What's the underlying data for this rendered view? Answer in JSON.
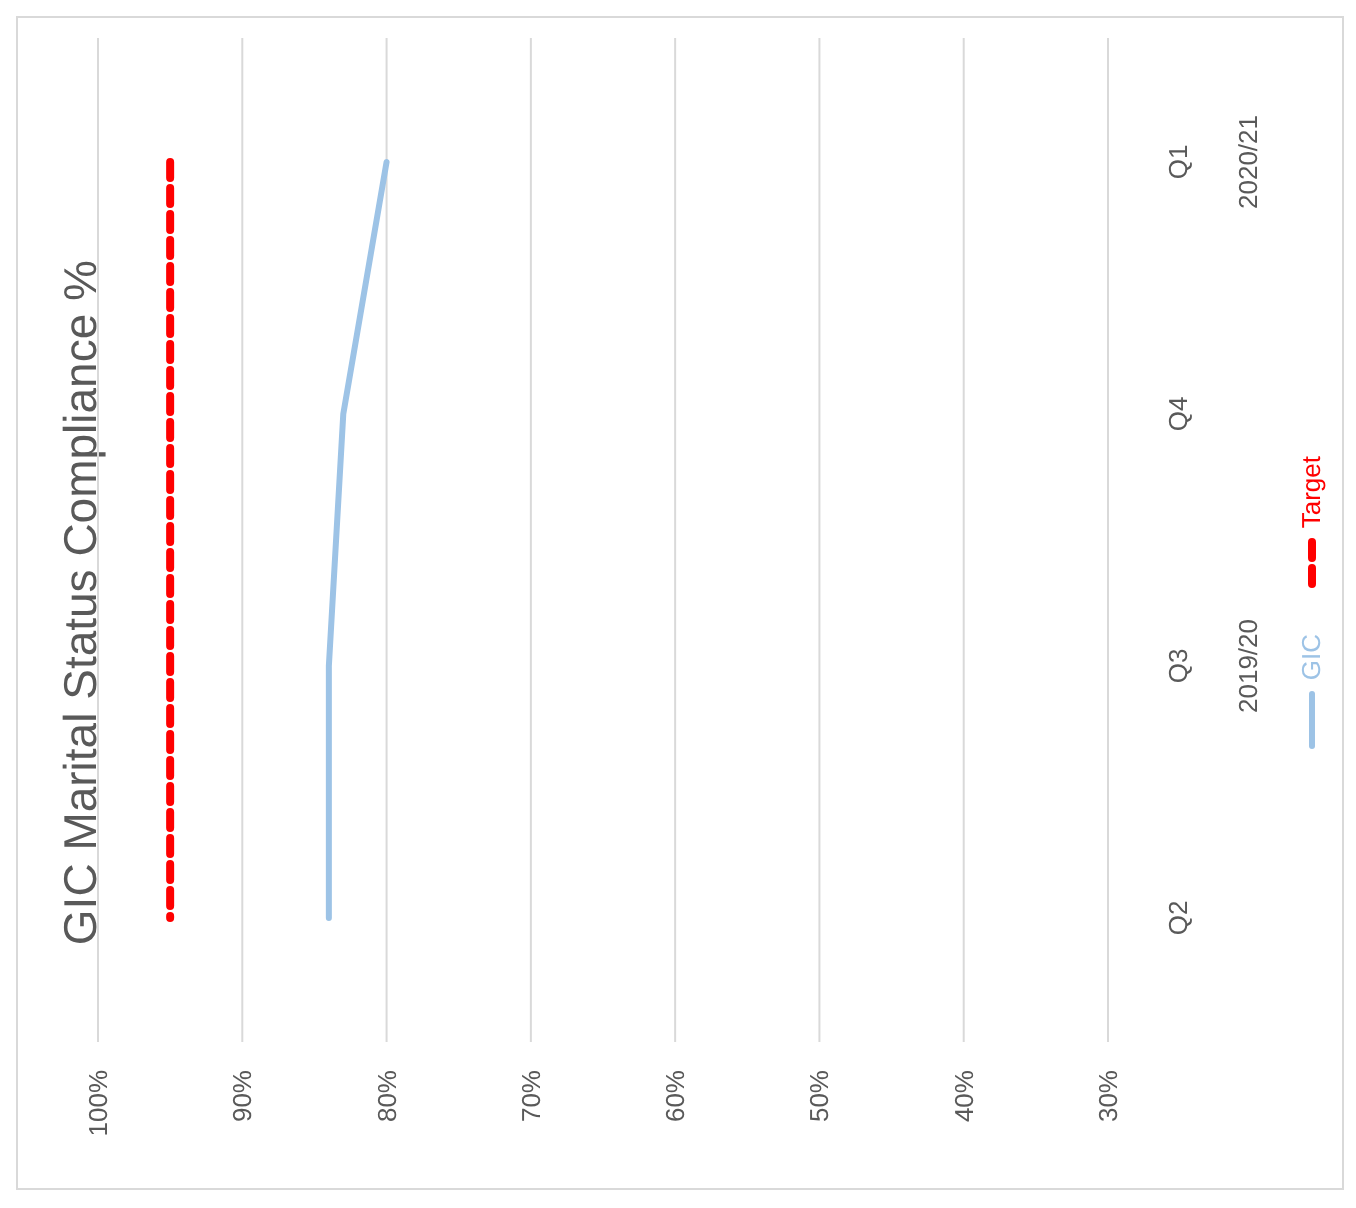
{
  "chart_data": {
    "type": "line",
    "orientation": "horizontal",
    "title": "GIC Marital Status Compliance %",
    "categories": [
      "Q1",
      "Q4",
      "Q3",
      "Q2"
    ],
    "series": [
      {
        "name": "GIC",
        "color": "#9dc3e6",
        "values": [
          80,
          83,
          84,
          84
        ],
        "line_style": "solid"
      },
      {
        "name": "Target",
        "color": "#ff0000",
        "values": [
          95,
          95,
          95,
          95
        ],
        "line_style": "dashed"
      }
    ],
    "xlim": [
      100,
      30
    ],
    "xticks": [
      {
        "value": 100,
        "label": "100%"
      },
      {
        "value": 90,
        "label": "90%"
      },
      {
        "value": 80,
        "label": "80%"
      },
      {
        "value": 70,
        "label": "70%"
      },
      {
        "value": 60,
        "label": "60%"
      },
      {
        "value": 50,
        "label": "50%"
      },
      {
        "value": 40,
        "label": "40%"
      },
      {
        "value": 30,
        "label": "30%"
      }
    ],
    "annotations": [
      "2019/20",
      "2020/21"
    ],
    "grid": "x",
    "legend": "right",
    "marker": "none"
  }
}
